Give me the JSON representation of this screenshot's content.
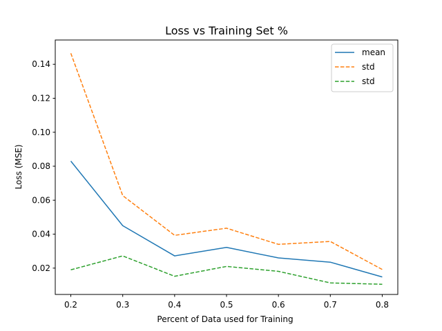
{
  "chart_data": {
    "type": "line",
    "title": "Loss vs Training Set %",
    "xlabel": "Percent of Data used for Training",
    "ylabel": "Loss (MSE)",
    "x": [
      0.2,
      0.3,
      0.4,
      0.5,
      0.6,
      0.7,
      0.8
    ],
    "x_tick_labels": [
      "0.2",
      "0.3",
      "0.4",
      "0.5",
      "0.6",
      "0.7",
      "0.8"
    ],
    "y_ticks": [
      0.02,
      0.04,
      0.06,
      0.08,
      0.1,
      0.12,
      0.14
    ],
    "y_tick_labels": [
      "0.02",
      "0.04",
      "0.06",
      "0.08",
      "0.10",
      "0.12",
      "0.14"
    ],
    "xlim": [
      0.17,
      0.83
    ],
    "ylim": [
      0.0045,
      0.1543
    ],
    "grid": false,
    "legend_position": "top-right",
    "series": [
      {
        "name": "mean",
        "color": "#1f77b4",
        "style": "solid",
        "values": [
          0.083,
          0.045,
          0.0272,
          0.0322,
          0.026,
          0.0235,
          0.0148
        ]
      },
      {
        "name": "std",
        "color": "#ff7f0e",
        "style": "dashed",
        "values": [
          0.1465,
          0.0627,
          0.0393,
          0.0435,
          0.034,
          0.0357,
          0.0192
        ]
      },
      {
        "name": "std",
        "color": "#2ca02c",
        "style": "dashed",
        "values": [
          0.019,
          0.0272,
          0.0152,
          0.021,
          0.0181,
          0.0113,
          0.0105
        ]
      }
    ]
  }
}
